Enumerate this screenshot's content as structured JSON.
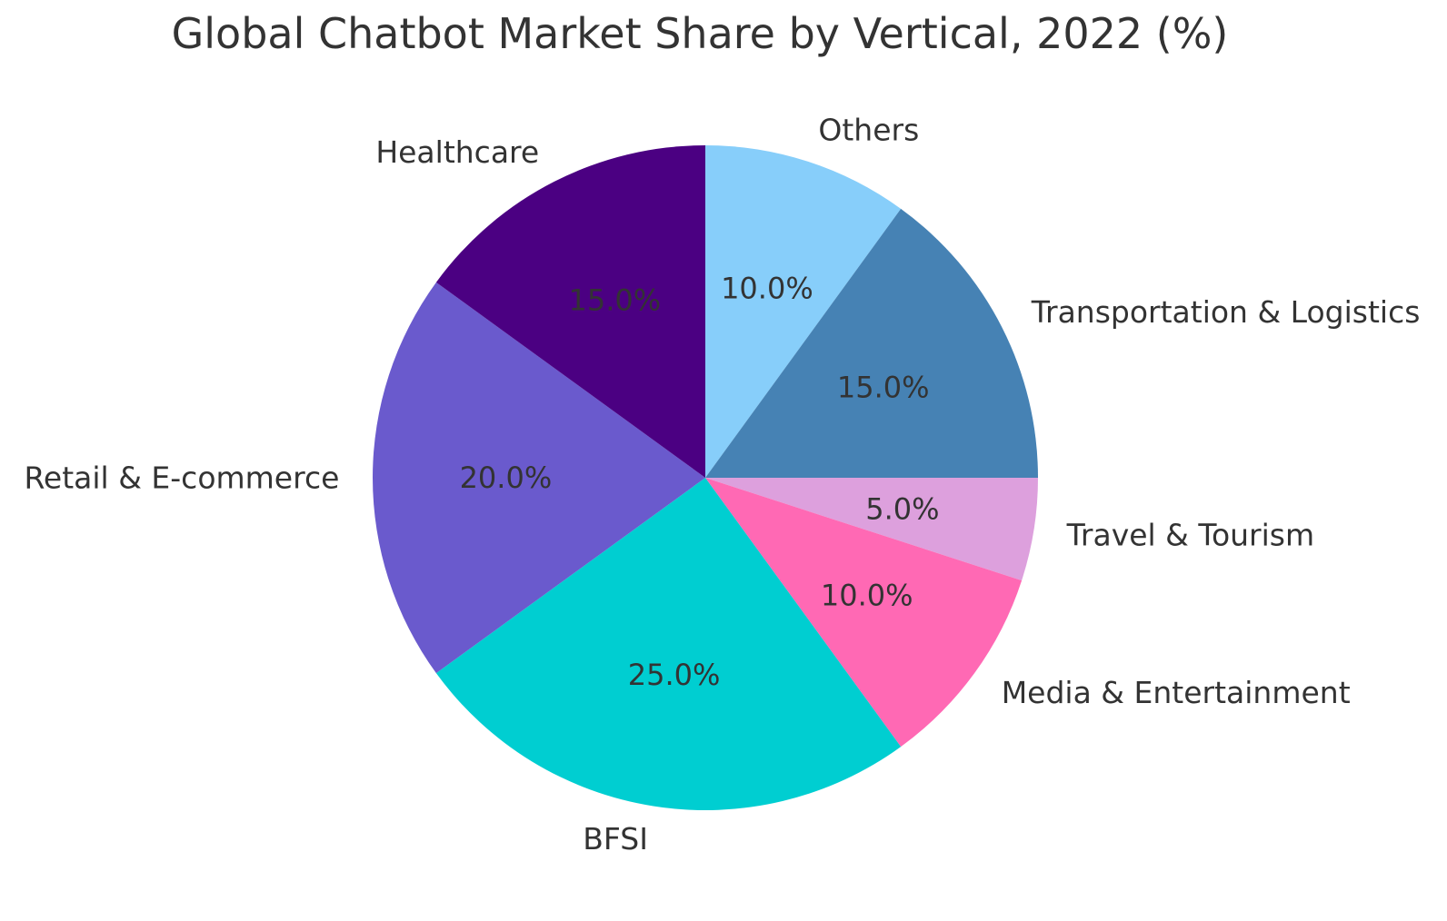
{
  "title": "Global Chatbot Market Share by Vertical, 2022 (%)",
  "chart_data": {
    "type": "pie",
    "title": "Global Chatbot Market Share by Vertical, 2022 (%)",
    "categories": [
      "Others",
      "Transportation & Logistics",
      "Travel & Tourism",
      "Media & Entertainment",
      "BFSI",
      "Retail & E-commerce",
      "Healthcare"
    ],
    "values": [
      10.0,
      15.0,
      5.0,
      10.0,
      25.0,
      20.0,
      15.0
    ],
    "slice_labels": [
      "10.0%",
      "15.0%",
      "5.0%",
      "10.0%",
      "25.0%",
      "20.0%",
      "15.0%"
    ],
    "colors": [
      "#87CEFA",
      "#4682B4",
      "#DDA0DD",
      "#FF69B4",
      "#00CED1",
      "#6A5ACD",
      "#4B0082"
    ],
    "start_angle_deg": 90,
    "direction": "clockwise",
    "label_distance": 1.1,
    "pct_distance": 0.6,
    "legend": "none",
    "background_color": "#ffffff",
    "text_color": "#333333"
  }
}
